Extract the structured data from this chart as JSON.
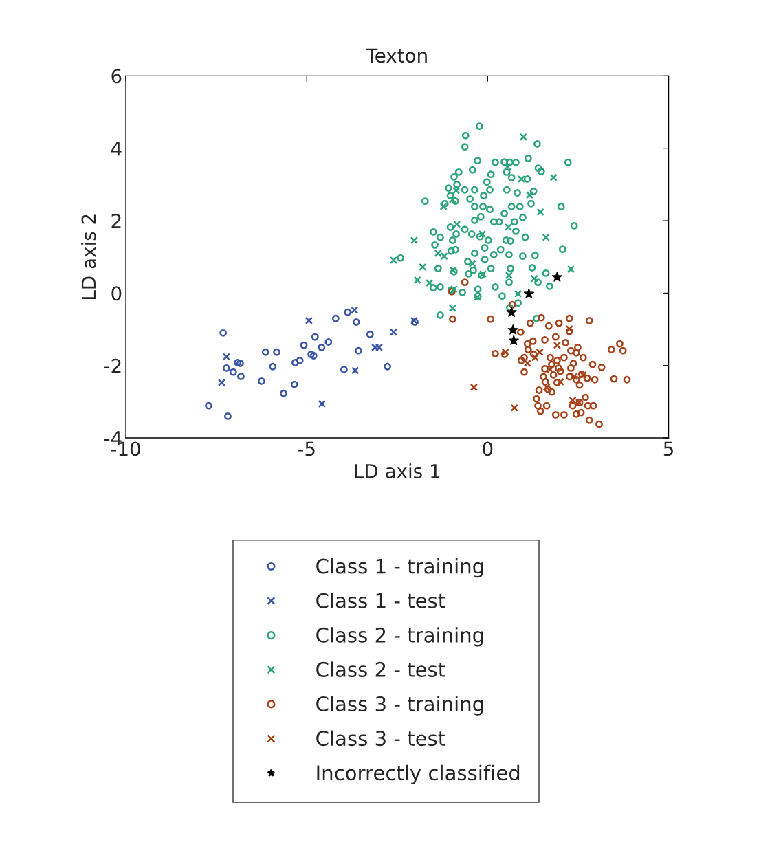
{
  "chart_data": {
    "type": "scatter",
    "title": "Texton",
    "xlabel": "LD axis 1",
    "ylabel": "LD axis 2",
    "xlim": [
      -10,
      5
    ],
    "xticks": [
      -10,
      -5,
      0,
      5
    ],
    "ylim": [
      -4,
      6
    ],
    "yticks": [
      -4,
      -2,
      0,
      2,
      4,
      6
    ],
    "grid": false,
    "legend": "bottom",
    "series": [
      {
        "name": "Class 1 - training",
        "color": "#3a55a5",
        "marker": "circle",
        "x": [
          -7.31,
          -7.71,
          -7.18,
          -7.22,
          -7.03,
          -6.91,
          -6.84,
          -6.82,
          -6.25,
          -6.14,
          -5.83,
          -5.94,
          -5.64,
          -5.34,
          -5.32,
          -5.19,
          -5.08,
          -4.88,
          -4.81,
          -4.77,
          -4.59,
          -4.4,
          -4.2,
          -3.97,
          -3.87,
          -3.63,
          -3.57,
          -3.25,
          -2.77,
          -2.01
        ],
        "values": [
          -1.1,
          -3.11,
          -3.4,
          -2.07,
          -2.18,
          -1.92,
          -1.94,
          -2.3,
          -2.43,
          -1.63,
          -1.63,
          -2.03,
          -2.77,
          -2.52,
          -1.92,
          -1.86,
          -1.44,
          -1.69,
          -1.73,
          -1.21,
          -1.5,
          -1.35,
          -0.7,
          -2.11,
          -0.53,
          -0.8,
          -1.59,
          -1.14,
          -2.03,
          -0.8
        ]
      },
      {
        "name": "Class 1 - test",
        "color": "#3a55a5",
        "marker": "cross",
        "x": [
          -7.22,
          -7.35,
          -4.94,
          -4.58,
          -3.68,
          -3.66,
          -3.11,
          -3.0,
          -2.6,
          -2.03
        ],
        "values": [
          -1.76,
          -2.47,
          -0.76,
          -3.06,
          -0.47,
          -2.14,
          -1.5,
          -1.5,
          -1.08,
          -0.76
        ]
      },
      {
        "name": "Class 2 - training",
        "color": "#2ca579",
        "marker": "circle",
        "x": [
          -0.23,
          -0.61,
          -0.63,
          -0.28,
          -0.42,
          0.21,
          0.53,
          0.61,
          0.46,
          0.78,
          1.37,
          1.12,
          1.4,
          2.22,
          1.1,
          1.27,
          1.2,
          1.48,
          0.66,
          0.09,
          -0.02,
          0.06,
          -0.11,
          -0.49,
          -0.93,
          -0.8,
          -0.85,
          -1.08,
          -1.18,
          -1.73,
          -1.03,
          -0.89,
          -0.63,
          -0.36,
          -0.36,
          -0.13,
          -0.19,
          0.06,
          0.17,
          0.32,
          0.53,
          0.82,
          0.89,
          0.66,
          0.46,
          0.74,
          0.97,
          0.78,
          1.04,
          0.63,
          0.51,
          2.03,
          2.39,
          -1.5,
          -1.03,
          -0.97,
          -1.01,
          -1.46,
          -1.31,
          -0.87,
          -0.63,
          -0.36,
          -0.44,
          -0.21,
          -0.08,
          0.02,
          -0.55,
          -0.36,
          -0.08,
          0.17,
          0.09,
          0.36,
          0.59,
          0.63,
          0.97,
          1.31,
          1.23,
          1.61,
          1.39,
          0.59,
          -0.17,
          0.21,
          0.4,
          -0.53,
          -0.27,
          -0.7,
          -1.01,
          -1.5,
          -1.31,
          -2.41,
          -1.31,
          -0.27,
          0.84,
          1.35,
          1.71,
          0.61,
          2.07,
          -0.89,
          -0.4,
          -0.93,
          -1.37
        ],
        "values": [
          4.61,
          4.35,
          4.04,
          3.66,
          3.4,
          3.61,
          3.34,
          3.61,
          3.62,
          3.61,
          4.12,
          3.72,
          3.45,
          3.61,
          3.15,
          2.81,
          2.47,
          3.36,
          3.19,
          3.28,
          3.07,
          2.85,
          2.69,
          2.6,
          3.21,
          3.34,
          3.0,
          2.9,
          2.47,
          2.54,
          2.69,
          2.54,
          2.85,
          2.85,
          2.39,
          2.39,
          2.11,
          2.31,
          1.97,
          1.97,
          2.85,
          2.77,
          2.39,
          2.39,
          2.2,
          1.97,
          2.09,
          1.71,
          1.54,
          1.44,
          1.46,
          2.39,
          1.86,
          1.69,
          1.82,
          1.46,
          1.16,
          1.33,
          1.54,
          1.63,
          1.76,
          2.01,
          1.63,
          1.56,
          1.25,
          1.46,
          0.87,
          1.1,
          0.93,
          1.06,
          0.68,
          1.2,
          1.06,
          0.68,
          1.02,
          1.04,
          0.7,
          0.55,
          0.3,
          0.3,
          0.49,
          0.17,
          -0.08,
          0.53,
          0.11,
          0.02,
          0.08,
          0.15,
          0.17,
          0.97,
          -0.61,
          -0.08,
          -0.27,
          -0.7,
          0.19,
          -0.4,
          1.21,
          1.2,
          0.63,
          0.59,
          0.68
        ]
      },
      {
        "name": "Class 2 - test",
        "color": "#2ca579",
        "marker": "cross",
        "x": [
          0.99,
          1.82,
          -0.97,
          -1.22,
          -0.85,
          -2.03,
          -1.8,
          -1.94,
          -1.61,
          -1.37,
          -1.2,
          -0.95,
          -0.42,
          -0.13,
          0.59,
          1.29,
          2.3,
          1.61,
          -0.15,
          0.57,
          1.16,
          -0.93,
          -0.28,
          0.84,
          -2.6,
          -0.97,
          -0.87,
          0.55,
          0.93,
          1.46
        ],
        "values": [
          4.31,
          3.19,
          2.58,
          2.39,
          1.9,
          1.46,
          0.72,
          0.36,
          0.28,
          1.1,
          1.02,
          0.63,
          0.82,
          0.53,
          0.49,
          0.4,
          0.66,
          1.54,
          1.63,
          1.82,
          2.71,
          0.11,
          -0.11,
          -0.02,
          0.91,
          -0.42,
          2.83,
          3.49,
          3.15,
          2.24
        ]
      },
      {
        "name": "Class 3 - training",
        "color": "#a5421a",
        "marker": "circle",
        "x": [
          -0.63,
          -0.99,
          -0.97,
          0.08,
          0.68,
          0.21,
          1.18,
          1.69,
          1.97,
          2.26,
          2.81,
          1.48,
          0.47,
          1.01,
          1.1,
          1.25,
          1.58,
          1.88,
          2.15,
          2.3,
          2.49,
          1.73,
          1.92,
          2.11,
          2.45,
          2.64,
          2.37,
          1.96,
          1.82,
          2.01,
          2.26,
          2.6,
          2.75,
          2.54,
          1.54,
          1.59,
          1.42,
          1.67,
          1.77,
          1.35,
          1.39,
          1.63,
          1.46,
          1.88,
          2.11,
          2.35,
          2.54,
          2.7,
          2.77,
          2.92,
          2.58,
          2.81,
          3.08,
          2.96,
          3.15,
          3.49,
          3.85,
          3.42,
          3.74,
          3.65,
          1.01,
          0.93,
          1.27,
          1.12,
          1.58,
          2.3,
          2.9,
          1.77,
          1.92,
          2.45,
          2.26,
          0.91,
          2.45
        ],
        "values": [
          0.3,
          0.04,
          -0.72,
          -0.72,
          -0.32,
          -1.67,
          -0.83,
          -0.91,
          -0.83,
          -1.06,
          -0.76,
          -0.68,
          -1.69,
          -2.18,
          -1.4,
          -1.33,
          -1.29,
          -1.21,
          -1.37,
          -1.59,
          -1.5,
          -1.78,
          -1.86,
          -1.78,
          -1.65,
          -1.78,
          -1.94,
          -2.07,
          -2.26,
          -2.16,
          -2.31,
          -2.24,
          -2.35,
          -2.54,
          -2.31,
          -2.45,
          -2.68,
          -2.66,
          -2.73,
          -2.92,
          -3.11,
          -3.11,
          -3.26,
          -3.36,
          -3.36,
          -3.11,
          -3.02,
          -2.88,
          -3.11,
          -3.11,
          -3.3,
          -3.51,
          -3.62,
          -2.39,
          -2.05,
          -2.37,
          -2.39,
          -1.56,
          -1.59,
          -1.4,
          -1.78,
          -1.86,
          -1.69,
          -1.56,
          -2.09,
          -2.07,
          -1.97,
          -1.97,
          -2.47,
          -2.39,
          -0.7,
          -1.08,
          -3.34
        ]
      },
      {
        "name": "Class 3 - test",
        "color": "#a5421a",
        "marker": "cross",
        "x": [
          -0.38,
          0.74,
          0.49,
          1.44,
          1.31,
          1.1,
          2.26,
          1.92,
          2.64,
          2.01,
          2.35,
          2.53,
          1.73,
          2.39,
          1.63
        ],
        "values": [
          -2.6,
          -3.17,
          -1.63,
          -1.63,
          -1.78,
          -1.94,
          -0.99,
          -1.44,
          -2.26,
          -2.45,
          -2.96,
          -3.02,
          -2.11,
          -2.3,
          -2.6
        ]
      },
      {
        "name": "Incorrectly classified",
        "color": "#000000",
        "marker": "star",
        "x": [
          0.66,
          0.7,
          0.72,
          1.14,
          1.92
        ],
        "values": [
          -0.53,
          -1.02,
          -1.31,
          -0.02,
          0.44
        ]
      }
    ]
  }
}
